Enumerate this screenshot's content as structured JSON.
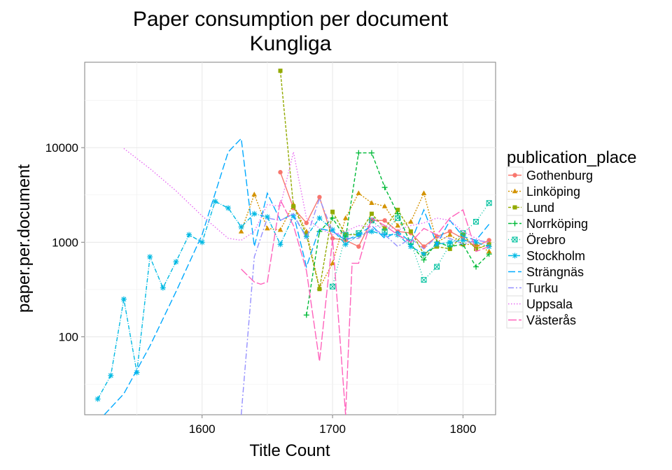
{
  "chart_data": {
    "type": "line",
    "title": "Paper consumption per document",
    "subtitle": "Kungliga",
    "xlabel": "Title Count",
    "ylabel": "paper.per.document",
    "xlim": [
      1510,
      1825
    ],
    "ylim": [
      15,
      80000
    ],
    "yscale": "log",
    "xticks": [
      1600,
      1700,
      1800
    ],
    "yticks": [
      100,
      1000,
      10000
    ],
    "grid": true,
    "legend_title": "publication_place",
    "legend_position": "right",
    "series": [
      {
        "name": "Gothenburg",
        "color": "#F8766D",
        "dash": "",
        "marker": "circle",
        "x": [
          1660,
          1670,
          1680,
          1690,
          1700,
          1710,
          1720,
          1730,
          1740,
          1750,
          1760,
          1770,
          1780,
          1790,
          1800,
          1810,
          1820
        ],
        "y": [
          5500,
          2300,
          1600,
          3000,
          1100,
          1050,
          900,
          1700,
          1700,
          1300,
          1250,
          900,
          1150,
          1300,
          1100,
          900,
          1050
        ]
      },
      {
        "name": "Linköping",
        "color": "#D39200",
        "dash": "2,2",
        "marker": "triangle",
        "x": [
          1630,
          1640,
          1650,
          1660,
          1670,
          1680,
          1690,
          1700,
          1710,
          1720,
          1730,
          1740,
          1750,
          1760,
          1770,
          1780,
          1790,
          1800,
          1810,
          1820
        ],
        "y": [
          1300,
          3200,
          1400,
          1350,
          2500,
          1300,
          330,
          600,
          1800,
          3300,
          2600,
          2400,
          1500,
          1650,
          3300,
          1000,
          1200,
          950,
          950,
          800
        ]
      },
      {
        "name": "Lund",
        "color": "#93AA00",
        "dash": "4,2",
        "marker": "square",
        "x": [
          1660,
          1670,
          1680,
          1690,
          1700,
          1710,
          1720,
          1730,
          1740,
          1750,
          1760,
          1770,
          1780,
          1790,
          1800,
          1810,
          1820
        ],
        "y": [
          65000,
          2400,
          1200,
          320,
          2100,
          1200,
          1200,
          2000,
          1400,
          2200,
          1300,
          750,
          900,
          850,
          1200,
          850,
          950
        ]
      },
      {
        "name": "Norrköping",
        "color": "#00BA38",
        "dash": "5,3",
        "marker": "plus",
        "x": [
          1680,
          1690,
          1700,
          1710,
          1720,
          1730,
          1740,
          1750,
          1760,
          1770,
          1780,
          1790,
          1800,
          1810,
          1820
        ],
        "y": [
          170,
          1300,
          1800,
          1100,
          8800,
          8800,
          3800,
          2000,
          950,
          650,
          1000,
          900,
          950,
          550,
          750
        ]
      },
      {
        "name": "Örebro",
        "color": "#00C19F",
        "dash": "1,3",
        "marker": "boxcross",
        "x": [
          1700,
          1710,
          1720,
          1730,
          1740,
          1750,
          1760,
          1770,
          1780,
          1790,
          1800,
          1810,
          1820
        ],
        "y": [
          340,
          1200,
          1250,
          1700,
          1300,
          1800,
          1000,
          400,
          550,
          950,
          1250,
          1650,
          2600
        ]
      },
      {
        "name": "Stockholm",
        "color": "#00B9E3",
        "dash": "6,2,1,2",
        "marker": "asterisk",
        "x": [
          1520,
          1530,
          1540,
          1550,
          1560,
          1570,
          1580,
          1590,
          1600,
          1610,
          1620,
          1630,
          1640,
          1650,
          1660,
          1670,
          1680,
          1690,
          1700,
          1710,
          1720,
          1730,
          1740,
          1750,
          1760,
          1770,
          1780,
          1790,
          1800,
          1810,
          1820
        ],
        "y": [
          22,
          39,
          250,
          42,
          700,
          330,
          620,
          1200,
          1000,
          2700,
          2300,
          1450,
          2000,
          1850,
          950,
          1900,
          1150,
          1800,
          1350,
          950,
          1200,
          1300,
          1200,
          1200,
          900,
          750,
          950,
          1000,
          1050,
          1000,
          900
        ]
      },
      {
        "name": "Strängnäs",
        "color": "#00A9FF",
        "dash": "10,4",
        "marker": "none",
        "x": [
          1525,
          1540,
          1560,
          1580,
          1600,
          1620,
          1630,
          1640,
          1650,
          1660,
          1670,
          1680,
          1690,
          1700,
          1710,
          1720,
          1730,
          1740,
          1750,
          1760,
          1770,
          1780,
          1790,
          1800,
          1810,
          1820
        ],
        "y": [
          15,
          25,
          80,
          300,
          1200,
          9000,
          12500,
          900,
          3300,
          1700,
          2000,
          550,
          1400,
          1300,
          1050,
          1200,
          1500,
          1100,
          1300,
          1000,
          2200,
          950,
          1700,
          1150,
          1050,
          1550
        ]
      },
      {
        "name": "Turku",
        "color": "#9590FF",
        "dash": "8,3,2,3",
        "marker": "none",
        "x": [
          1630,
          1640,
          1650,
          1660,
          1670,
          1680,
          1690,
          1700,
          1710,
          1720,
          1730,
          1740,
          1750,
          1760,
          1770,
          1780,
          1790,
          1800,
          1810,
          1820
        ],
        "y": [
          15,
          700,
          1800,
          1700,
          2000,
          1100,
          2900,
          1300,
          1100,
          1100,
          1400,
          1200,
          900,
          1100,
          850,
          1150,
          1100,
          950,
          1050,
          1000
        ]
      },
      {
        "name": "Uppsala",
        "color": "#E76BF3",
        "dash": "1.5,2.5",
        "marker": "none",
        "x": [
          1540,
          1560,
          1580,
          1600,
          1620,
          1630,
          1640,
          1650,
          1660,
          1670,
          1680,
          1690,
          1700,
          1710,
          1720,
          1730,
          1740,
          1750,
          1760,
          1770,
          1780,
          1790,
          1800,
          1810,
          1820
        ],
        "y": [
          9800,
          6000,
          3500,
          1900,
          1100,
          1050,
          1300,
          2500,
          2400,
          9000,
          1800,
          1400,
          1200,
          1300,
          1500,
          1450,
          1500,
          1350,
          1500,
          1600,
          1800,
          1700,
          1300,
          1100,
          950
        ]
      },
      {
        "name": "Västerås",
        "color": "#FF62BC",
        "dash": "12,3",
        "marker": "none",
        "x": [
          1630,
          1640,
          1645,
          1650,
          1660,
          1670,
          1680,
          1690,
          1700,
          1710,
          1715,
          1720,
          1730,
          1740,
          1750,
          1760,
          1770,
          1780,
          1790,
          1800,
          1810,
          1820
        ],
        "y": [
          520,
          380,
          360,
          380,
          2800,
          1500,
          500,
          55,
          1100,
          15,
          600,
          600,
          1800,
          1500,
          1200,
          1000,
          1400,
          1200,
          1800,
          2200,
          800,
          900
        ]
      }
    ]
  }
}
